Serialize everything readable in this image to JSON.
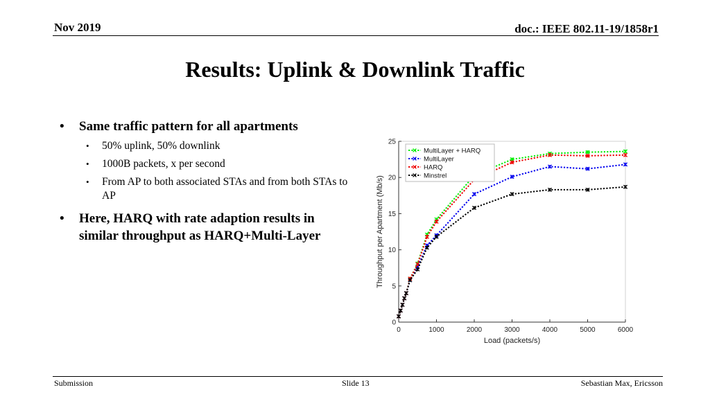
{
  "header": {
    "date": "Nov 2019",
    "doc": "doc.: IEEE 802.11-19/1858r1"
  },
  "slide_title": "Results: Uplink & Downlink Traffic",
  "bullets": {
    "b1": {
      "text": "Same traffic pattern for all apartments",
      "subs": [
        "50% uplink, 50% downlink",
        "1000B packets, x per second",
        "From AP to both associated STAs and from both STAs to AP"
      ]
    },
    "b2": {
      "text": "Here, HARQ with rate adaption results in similar throughput as HARQ+Multi-Layer"
    },
    "bullet_glyph": "•"
  },
  "footer": {
    "left": "Submission",
    "center": "Slide 13",
    "right": "Sebastian Max, Ericsson"
  },
  "chart_data": {
    "type": "line",
    "xlabel": "Load (packets/s)",
    "ylabel": "Throughput per Apartment (Mb/s)",
    "xlim": [
      0,
      6000
    ],
    "ylim": [
      0,
      25
    ],
    "xticks": [
      0,
      1000,
      2000,
      3000,
      4000,
      5000,
      6000
    ],
    "yticks": [
      0,
      5,
      10,
      15,
      20,
      25
    ],
    "legend_position": "top-left",
    "series": [
      {
        "name": "MultiLayer + HARQ",
        "color": "#00ee00",
        "x": [
          0,
          50,
          100,
          150,
          200,
          300,
          500,
          750,
          1000,
          2000,
          3000,
          4000,
          5000,
          6000
        ],
        "y": [
          0.8,
          1.6,
          2.4,
          3.3,
          4.0,
          6.0,
          8.1,
          12.1,
          14.2,
          20.3,
          22.5,
          23.3,
          23.5,
          23.6
        ]
      },
      {
        "name": "MultiLayer",
        "color": "#0000ee",
        "x": [
          0,
          50,
          100,
          150,
          200,
          300,
          500,
          750,
          1000,
          2000,
          3000,
          4000,
          5000,
          6000
        ],
        "y": [
          0.8,
          1.6,
          2.4,
          3.3,
          4.0,
          5.8,
          7.6,
          10.6,
          12.0,
          17.7,
          20.1,
          21.5,
          21.2,
          21.8
        ]
      },
      {
        "name": "HARQ",
        "color": "#ee0000",
        "x": [
          0,
          50,
          100,
          150,
          200,
          300,
          500,
          750,
          1000,
          2000,
          3000,
          4000,
          5000,
          6000
        ],
        "y": [
          0.8,
          1.6,
          2.4,
          3.3,
          4.0,
          6.0,
          8.0,
          11.8,
          13.9,
          19.7,
          22.1,
          23.1,
          23.0,
          23.1
        ]
      },
      {
        "name": "Minstrel",
        "color": "#000000",
        "x": [
          0,
          50,
          100,
          150,
          200,
          300,
          500,
          750,
          1000,
          2000,
          3000,
          4000,
          5000,
          6000
        ],
        "y": [
          0.8,
          1.6,
          2.4,
          3.3,
          4.0,
          5.8,
          7.3,
          10.3,
          11.8,
          15.8,
          17.7,
          18.3,
          18.3,
          18.7
        ]
      }
    ]
  }
}
